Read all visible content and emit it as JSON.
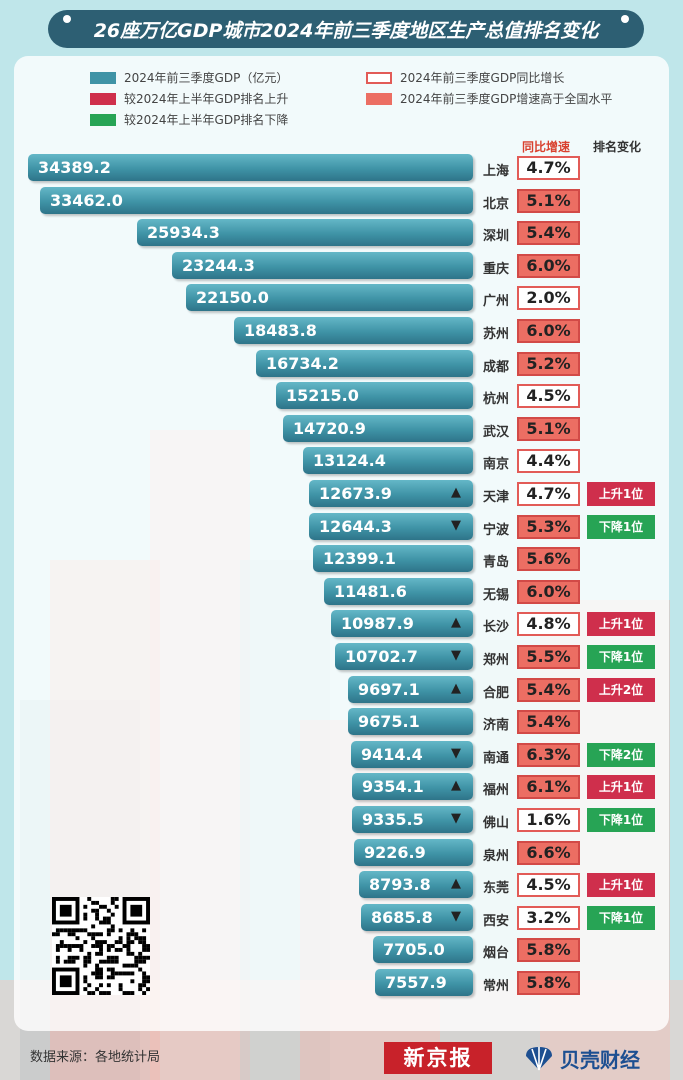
{
  "title": "26座万亿GDP城市2024年前三季度地区生产总值排名变化",
  "legend": {
    "gdp": "2024年前三季度GDP（亿元）",
    "up": "较2024年上半年GDP排名上升",
    "down": "较2024年上半年GDP排名下降",
    "growth": "2024年前三季度GDP同比增长",
    "above": "2024年前三季度GDP增速高于全国水平"
  },
  "headers": {
    "growth": "同比增速",
    "rank_change": "排名变化"
  },
  "colors": {
    "bar": "#3f93a6",
    "up": "#cf2f4c",
    "down": "#27a455",
    "above": "#ec6e63",
    "banner": "#2d5f73"
  },
  "chart_data": {
    "type": "bar",
    "orientation": "horizontal",
    "title": "26座万亿GDP城市2024年前三季度地区生产总值排名变化",
    "xlabel": "",
    "ylabel": "",
    "rows": [
      {
        "city": "上海",
        "gdp": "34389.2",
        "growth": "4.7%",
        "above": false,
        "change": "",
        "dir": ""
      },
      {
        "city": "北京",
        "gdp": "33462.0",
        "growth": "5.1%",
        "above": true,
        "change": "",
        "dir": ""
      },
      {
        "city": "深圳",
        "gdp": "25934.3",
        "growth": "5.4%",
        "above": true,
        "change": "",
        "dir": ""
      },
      {
        "city": "重庆",
        "gdp": "23244.3",
        "growth": "6.0%",
        "above": true,
        "change": "",
        "dir": ""
      },
      {
        "city": "广州",
        "gdp": "22150.0",
        "growth": "2.0%",
        "above": false,
        "change": "",
        "dir": ""
      },
      {
        "city": "苏州",
        "gdp": "18483.8",
        "growth": "6.0%",
        "above": true,
        "change": "",
        "dir": ""
      },
      {
        "city": "成都",
        "gdp": "16734.2",
        "growth": "5.2%",
        "above": true,
        "change": "",
        "dir": ""
      },
      {
        "city": "杭州",
        "gdp": "15215.0",
        "growth": "4.5%",
        "above": false,
        "change": "",
        "dir": ""
      },
      {
        "city": "武汉",
        "gdp": "14720.9",
        "growth": "5.1%",
        "above": true,
        "change": "",
        "dir": ""
      },
      {
        "city": "南京",
        "gdp": "13124.4",
        "growth": "4.4%",
        "above": false,
        "change": "",
        "dir": ""
      },
      {
        "city": "天津",
        "gdp": "12673.9",
        "growth": "4.7%",
        "above": false,
        "change": "上升1位",
        "dir": "up"
      },
      {
        "city": "宁波",
        "gdp": "12644.3",
        "growth": "5.3%",
        "above": true,
        "change": "下降1位",
        "dir": "down"
      },
      {
        "city": "青岛",
        "gdp": "12399.1",
        "growth": "5.6%",
        "above": true,
        "change": "",
        "dir": ""
      },
      {
        "city": "无锡",
        "gdp": "11481.6",
        "growth": "6.0%",
        "above": true,
        "change": "",
        "dir": ""
      },
      {
        "city": "长沙",
        "gdp": "10987.9",
        "growth": "4.8%",
        "above": false,
        "change": "上升1位",
        "dir": "up"
      },
      {
        "city": "郑州",
        "gdp": "10702.7",
        "growth": "5.5%",
        "above": true,
        "change": "下降1位",
        "dir": "down"
      },
      {
        "city": "合肥",
        "gdp": "9697.1",
        "growth": "5.4%",
        "above": true,
        "change": "上升2位",
        "dir": "up"
      },
      {
        "city": "济南",
        "gdp": "9675.1",
        "growth": "5.4%",
        "above": true,
        "change": "",
        "dir": ""
      },
      {
        "city": "南通",
        "gdp": "9414.4",
        "growth": "6.3%",
        "above": true,
        "change": "下降2位",
        "dir": "down"
      },
      {
        "city": "福州",
        "gdp": "9354.1",
        "growth": "6.1%",
        "above": true,
        "change": "上升1位",
        "dir": "up"
      },
      {
        "city": "佛山",
        "gdp": "9335.5",
        "growth": "1.6%",
        "above": false,
        "change": "下降1位",
        "dir": "down"
      },
      {
        "city": "泉州",
        "gdp": "9226.9",
        "growth": "6.6%",
        "above": true,
        "change": "",
        "dir": ""
      },
      {
        "city": "东莞",
        "gdp": "8793.8",
        "growth": "4.5%",
        "above": false,
        "change": "上升1位",
        "dir": "up"
      },
      {
        "city": "西安",
        "gdp": "8685.8",
        "growth": "3.2%",
        "above": false,
        "change": "下降1位",
        "dir": "down"
      },
      {
        "city": "烟台",
        "gdp": "7705.0",
        "growth": "5.8%",
        "above": true,
        "change": "",
        "dir": ""
      },
      {
        "city": "常州",
        "gdp": "7557.9",
        "growth": "5.8%",
        "above": true,
        "change": "",
        "dir": ""
      }
    ]
  },
  "source": "数据来源：各地统计局",
  "logos": {
    "xjb": "新京报",
    "bk": "贝壳财经"
  }
}
